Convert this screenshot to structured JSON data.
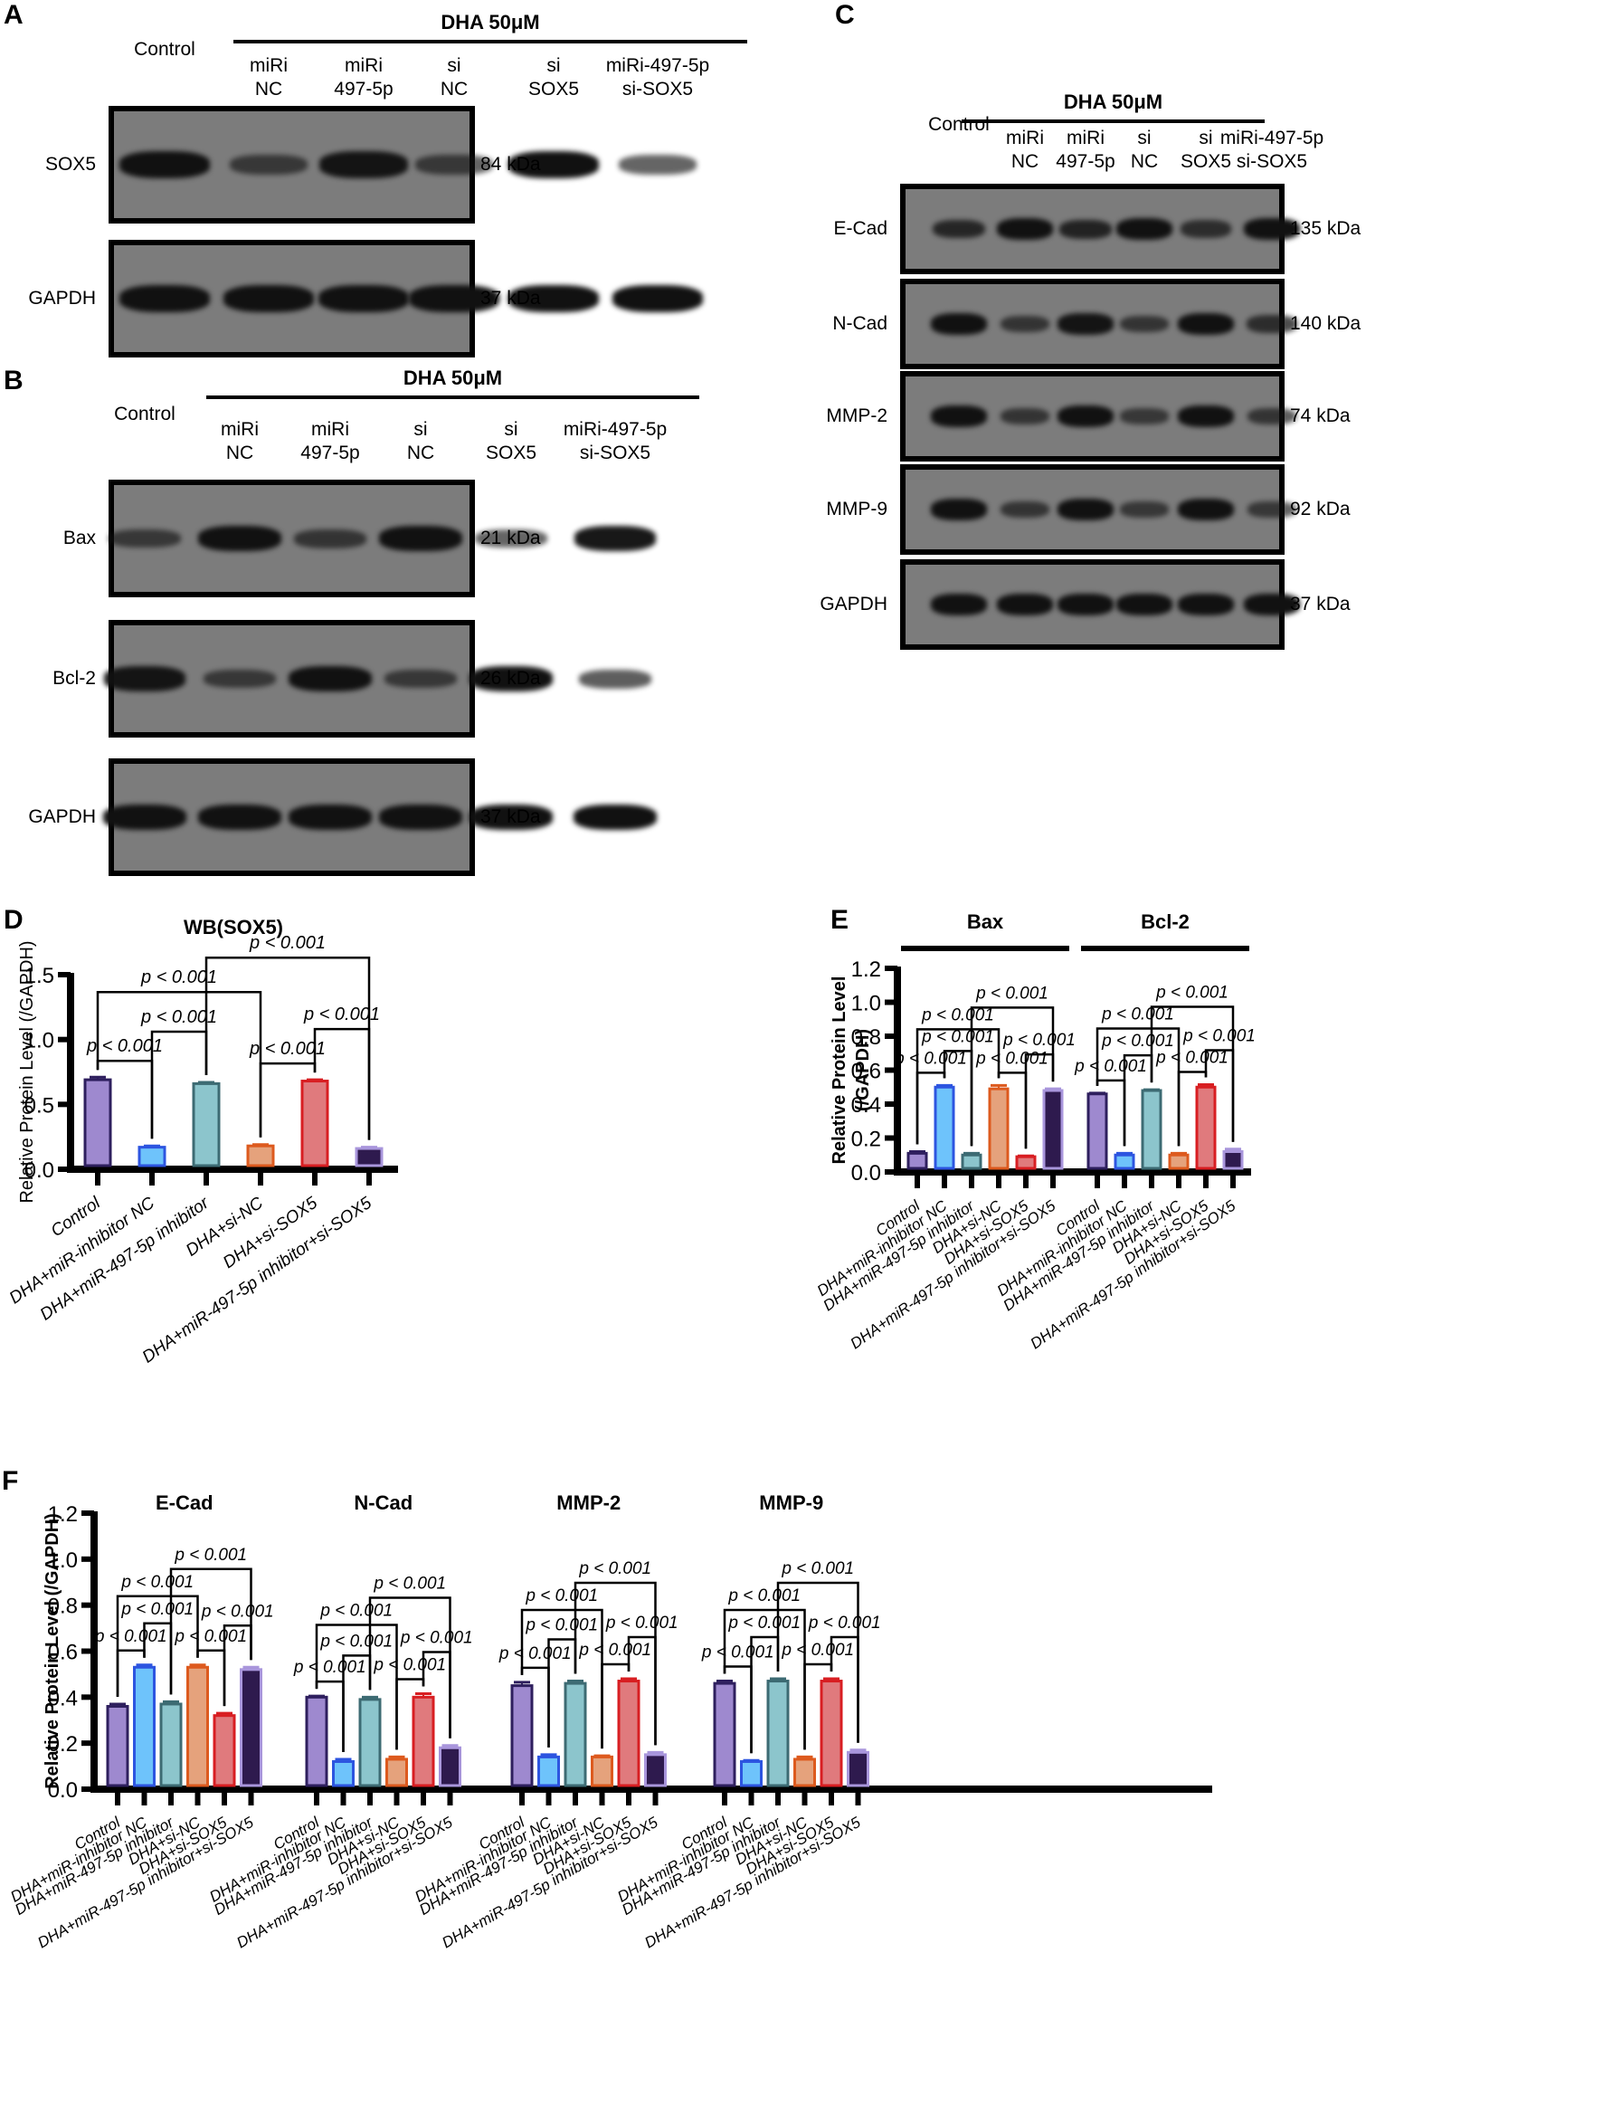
{
  "panels": {
    "A": {
      "letter": "A",
      "treatment": "DHA 50μM",
      "lanes": [
        "Control",
        "miRi\nNC",
        "miRi\n497-5p",
        "si\nNC",
        "si\nSOX5",
        "miRi-497-5p\nsi-SOX5"
      ],
      "blots": [
        {
          "name": "SOX5",
          "kda": "84 kDa",
          "intensity": [
            1.0,
            0.45,
            0.95,
            0.45,
            1.0,
            0.45
          ]
        },
        {
          "name": "GAPDH",
          "kda": "37 kDa",
          "intensity": [
            1,
            1,
            1,
            1,
            1,
            1
          ]
        }
      ]
    },
    "B": {
      "letter": "B",
      "treatment": "DHA 50μM",
      "lanes": [
        "Control",
        "miRi\nNC",
        "miRi\n497-5p",
        "si\nNC",
        "si\nSOX5",
        "miRi-497-5p\nsi-SOX5"
      ],
      "blots": [
        {
          "name": "Bax",
          "kda": "21 kDa",
          "intensity": [
            0.45,
            1.0,
            0.5,
            1.0,
            0.45,
            0.95
          ]
        },
        {
          "name": "Bcl-2",
          "kda": "26 kDa",
          "intensity": [
            0.95,
            0.45,
            1.0,
            0.45,
            1.0,
            0.5
          ]
        },
        {
          "name": "GAPDH",
          "kda": "37 kDa",
          "intensity": [
            1,
            1,
            1,
            1,
            1,
            1
          ]
        }
      ]
    },
    "C": {
      "letter": "C",
      "treatment": "DHA 50μM",
      "lanes": [
        "Control",
        "miRi\nNC",
        "miRi\n497-5p",
        "si\nNC",
        "si\nSOX5",
        "miRi-497-5p\nsi-SOX5"
      ],
      "blots": [
        {
          "name": "E-Cad",
          "kda": "135 kDa",
          "intensity": [
            0.7,
            1.0,
            0.75,
            1.0,
            0.6,
            1.0
          ]
        },
        {
          "name": "N-Cad",
          "kda": "140 kDa",
          "intensity": [
            1.0,
            0.5,
            0.95,
            0.5,
            1.0,
            0.6
          ]
        },
        {
          "name": "MMP-2",
          "kda": "74 kDa",
          "intensity": [
            1.0,
            0.5,
            1.0,
            0.45,
            1.0,
            0.5
          ]
        },
        {
          "name": "MMP-9",
          "kda": "92 kDa",
          "intensity": [
            1.0,
            0.5,
            1.0,
            0.45,
            1.0,
            0.45
          ]
        },
        {
          "name": "GAPDH",
          "kda": "37 kDa",
          "intensity": [
            1,
            1,
            1,
            1,
            1,
            1
          ]
        }
      ]
    },
    "D": {
      "letter": "D"
    },
    "E": {
      "letter": "E"
    },
    "F": {
      "letter": "F"
    }
  },
  "groups": [
    "Control",
    "DHA+miR-inhibitor NC",
    "DHA+miR-497-5p inhibitor",
    "DHA+si-NC",
    "DHA+si-SOX5",
    "DHA+miR-497-5p inhibitor+si-SOX5"
  ],
  "colors": {
    "fill": [
      "#9e89cf",
      "#6ec3fb",
      "#8cc5cc",
      "#e5a27c",
      "#e07a7d",
      "#2e1a4e"
    ],
    "stroke": [
      "#2e1f5e",
      "#2d55e0",
      "#3d6b73",
      "#dd5a1e",
      "#d81e22",
      "#a996dc"
    ]
  },
  "sig_label": "p < 0.001",
  "chart_data": [
    {
      "panel": "D",
      "type": "bar",
      "title": "WB(SOX5)",
      "xlabel": "",
      "ylabel": "Relative Protein Level (/GAPDH)",
      "ylim": [
        0,
        1.5
      ],
      "yticks": [
        0.0,
        0.5,
        1.0,
        1.5
      ],
      "categories": [
        "Control",
        "DHA+miR-inhibitor NC",
        "DHA+miR-497-5p inhibitor",
        "DHA+si-NC",
        "DHA+si-SOX5",
        "DHA+miR-497-5p inhibitor+si-SOX5"
      ],
      "series": [
        {
          "name": "SOX5",
          "values": [
            0.69,
            0.17,
            0.66,
            0.18,
            0.68,
            0.16
          ],
          "errors": [
            0.02,
            0.01,
            0.01,
            0.01,
            0.01,
            0.01
          ]
        }
      ],
      "annotations": [
        {
          "pair": [
            0,
            1
          ],
          "text": "p < 0.001"
        },
        {
          "pair": [
            1,
            2
          ],
          "text": "p < 0.001"
        },
        {
          "pair": [
            3,
            4
          ],
          "text": "p < 0.001"
        },
        {
          "pair": [
            4,
            5
          ],
          "text": "p < 0.001"
        },
        {
          "pair": [
            0,
            3
          ],
          "text": "p < 0.001"
        },
        {
          "pair": [
            2,
            5
          ],
          "text": "p < 0.001"
        }
      ]
    },
    {
      "panel": "E",
      "type": "bar",
      "title": "",
      "groups_titles": [
        "Bax",
        "Bcl-2"
      ],
      "ylabel": "Relative Protein Level (/GAPDH)",
      "ylim": [
        0,
        1.2
      ],
      "yticks": [
        0.0,
        0.2,
        0.4,
        0.6,
        0.8,
        1.0,
        1.2
      ],
      "categories": [
        "Control",
        "DHA+miR-inhibitor NC",
        "DHA+miR-497-5p inhibitor",
        "DHA+si-NC",
        "DHA+si-SOX5",
        "DHA+miR-497-5p inhibitor+si-SOX5"
      ],
      "series": [
        {
          "name": "Bax",
          "values": [
            0.11,
            0.5,
            0.1,
            0.49,
            0.09,
            0.48
          ],
          "errors": [
            0.01,
            0.01,
            0.01,
            0.02,
            0.005,
            0.01
          ]
        },
        {
          "name": "Bcl-2",
          "values": [
            0.46,
            0.1,
            0.48,
            0.1,
            0.5,
            0.12
          ],
          "errors": [
            0.005,
            0.01,
            0.005,
            0.01,
            0.015,
            0.015
          ]
        }
      ],
      "annotations": "p < 0.001 for pairs (0,1),(1,2),(3,4),(4,5),(0,3),(2,5) in each group"
    },
    {
      "panel": "F",
      "type": "bar",
      "ylabel": "Relative Protein Level (/GAPDH)",
      "ylim": [
        0,
        1.2
      ],
      "yticks": [
        0.0,
        0.2,
        0.4,
        0.6,
        0.8,
        1.0,
        1.2
      ],
      "groups_titles": [
        "E-Cad",
        "N-Cad",
        "MMP-2",
        "MMP-9"
      ],
      "categories": [
        "Control",
        "DHA+miR-inhibitor NC",
        "DHA+miR-497-5p inhibitor",
        "DHA+si-NC",
        "DHA+si-SOX5",
        "DHA+miR-497-5p inhibitor+si-SOX5"
      ],
      "series": [
        {
          "name": "E-Cad",
          "values": [
            0.36,
            0.53,
            0.37,
            0.53,
            0.32,
            0.52
          ],
          "errors": [
            0.01,
            0.01,
            0.01,
            0.01,
            0.01,
            0.01
          ]
        },
        {
          "name": "N-Cad",
          "values": [
            0.4,
            0.12,
            0.39,
            0.13,
            0.4,
            0.18
          ],
          "errors": [
            0.005,
            0.01,
            0.01,
            0.01,
            0.015,
            0.01
          ]
        },
        {
          "name": "MMP-2",
          "values": [
            0.45,
            0.14,
            0.46,
            0.14,
            0.47,
            0.15
          ],
          "errors": [
            0.015,
            0.01,
            0.01,
            0.005,
            0.01,
            0.01
          ]
        },
        {
          "name": "MMP-9",
          "values": [
            0.46,
            0.12,
            0.47,
            0.13,
            0.47,
            0.16
          ],
          "errors": [
            0.01,
            0.005,
            0.01,
            0.01,
            0.01,
            0.01
          ]
        }
      ],
      "annotations": "p < 0.001 for pairs (0,1),(1,2),(3,4),(4,5),(0,3),(2,5) in each group"
    }
  ]
}
